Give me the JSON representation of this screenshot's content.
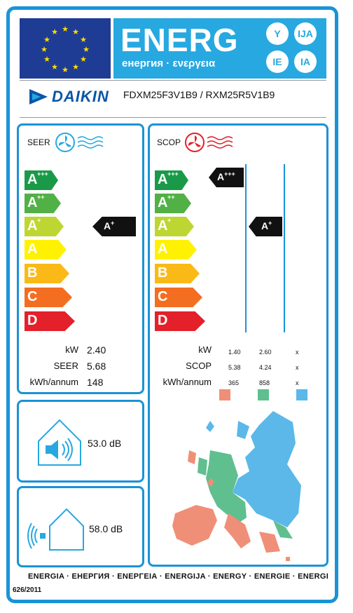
{
  "header": {
    "energ": "ENERG",
    "energ_sub": "енергия · ενεργεια",
    "language_codes": [
      "Y",
      "IJA",
      "IE",
      "IA"
    ]
  },
  "supplier": {
    "brand": "DAIKIN",
    "model": "FDXM25F3V1B9 / RXM25R5V1B9"
  },
  "energy_classes": [
    {
      "label": "A",
      "sup": "+++",
      "color": "#1a9a48"
    },
    {
      "label": "A",
      "sup": "++",
      "color": "#52b146"
    },
    {
      "label": "A",
      "sup": "+",
      "color": "#bed631"
    },
    {
      "label": "A",
      "sup": "",
      "color": "#fff200"
    },
    {
      "label": "B",
      "sup": "",
      "color": "#fbb917"
    },
    {
      "label": "C",
      "sup": "",
      "color": "#f36e21"
    },
    {
      "label": "D",
      "sup": "",
      "color": "#e4202b"
    }
  ],
  "cooling": {
    "title": "SEER",
    "rating_label": "A",
    "rating_sup": "+",
    "rows": [
      {
        "label": "kW",
        "value": "2.40"
      },
      {
        "label": "SEER",
        "value": "5.68"
      },
      {
        "label": "kWh/annum",
        "value": "148"
      }
    ]
  },
  "heating": {
    "title": "SCOP",
    "ratings": [
      {
        "label": "A",
        "sup": "+++"
      },
      {
        "label": "A",
        "sup": "+"
      }
    ],
    "row_labels": [
      "kW",
      "SCOP",
      "kWh/annum"
    ],
    "columns": [
      {
        "values": [
          "1.40",
          "5.38",
          "365"
        ],
        "color": "#f08f77"
      },
      {
        "values": [
          "2.60",
          "4.24",
          "858"
        ],
        "color": "#5fbf8f"
      },
      {
        "values": [
          "x",
          "x",
          "x"
        ],
        "color": "#5bb8e8"
      }
    ]
  },
  "noise": {
    "indoor": "53.0 dB",
    "outdoor": "58.0 dB"
  },
  "footer": {
    "languages": "ENERGIA · ЕНЕРГИЯ · ΕΝΕΡΓΕΙΑ · ENERGIJA · ENERGY · ENERGIE · ENERGI",
    "regulation": "626/2011"
  },
  "colors": {
    "frame_blue": "#1a93d6",
    "eu_blue": "#1f3c94",
    "energ_blue": "#27a8e0",
    "star_yellow": "#ffdd00"
  }
}
